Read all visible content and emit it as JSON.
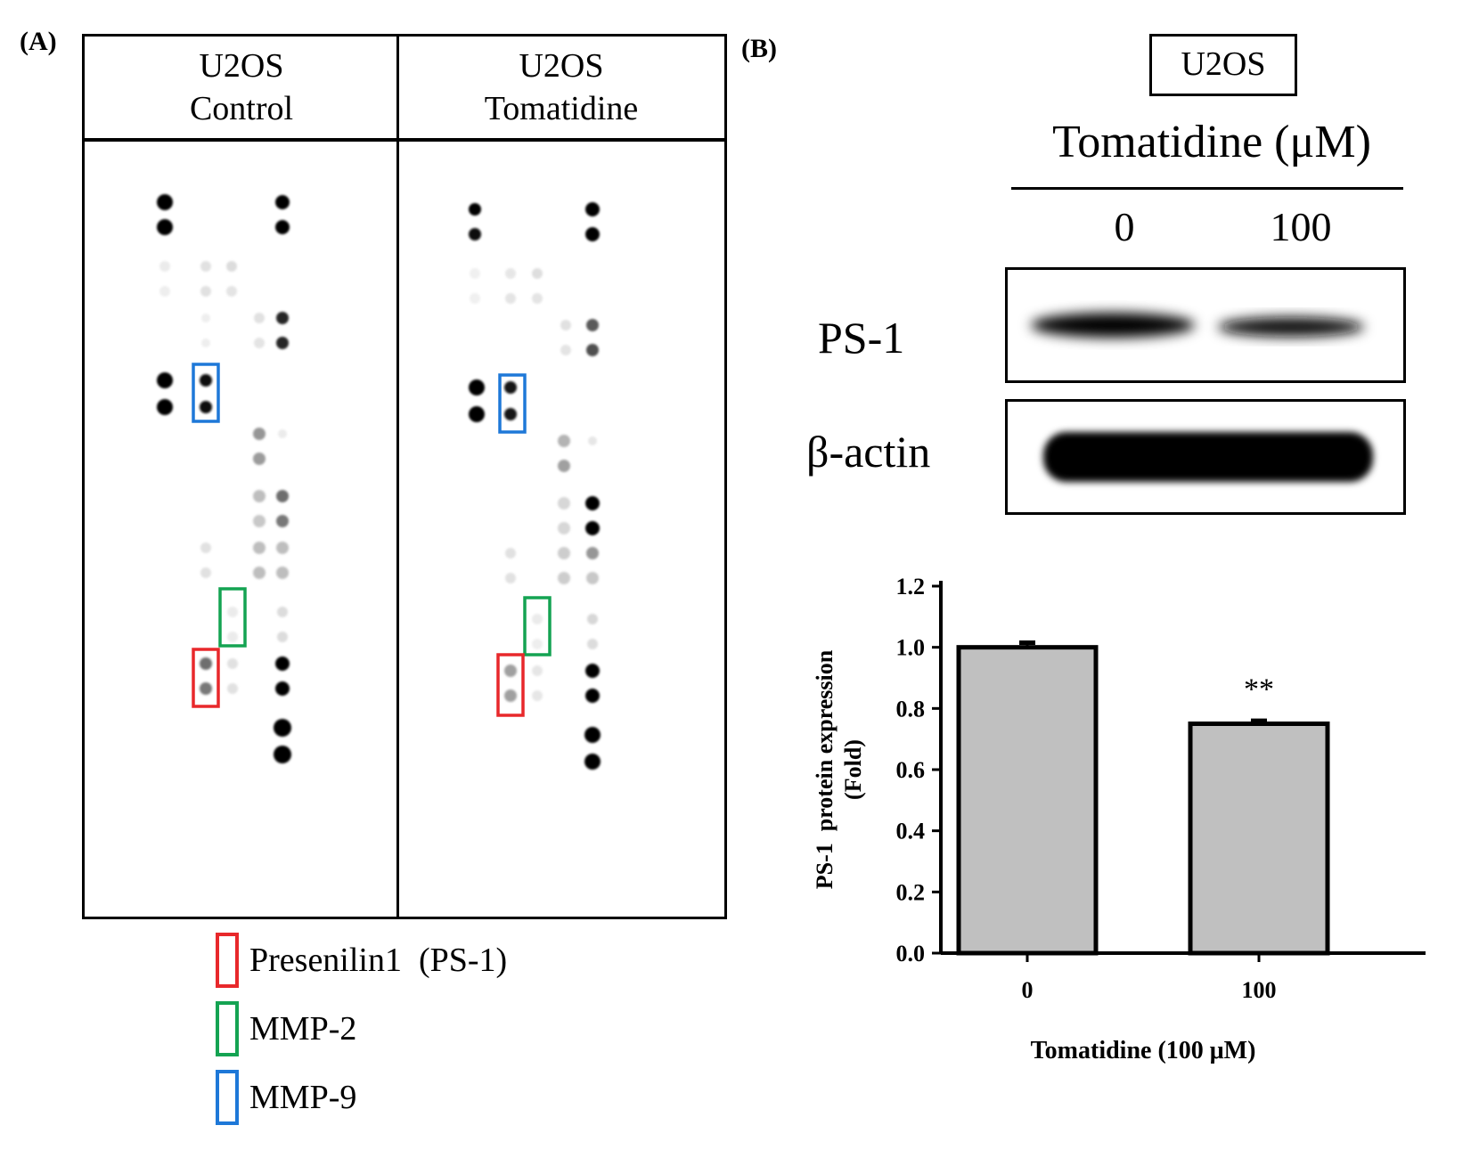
{
  "panel_a": {
    "label": "(A)",
    "headers": [
      {
        "line1": "U2OS",
        "line2": "Control"
      },
      {
        "line1": "U2OS",
        "line2": "Tomatidine"
      }
    ],
    "legend": [
      {
        "text": "Presenilin1  (PS-1)",
        "color": "#e8282b"
      },
      {
        "text": "MMP-2",
        "color": "#14a352"
      },
      {
        "text": "MMP-9",
        "color": "#1e78d8"
      }
    ]
  },
  "panel_b": {
    "label": "(B)",
    "cell_line": "U2OS",
    "treatment_label": "Tomatidine (μM)",
    "doses": [
      "0",
      "100"
    ],
    "blot_rows": [
      "PS-1",
      "β-actin"
    ]
  },
  "chart_data": {
    "type": "bar",
    "categories": [
      "0",
      "100"
    ],
    "values": [
      1.0,
      0.75
    ],
    "errors": [
      0.015,
      0.01
    ],
    "annotations": [
      "",
      "**"
    ],
    "ylabel_line1": "PS-1  protein expression",
    "ylabel_line2": "(Fold)",
    "xlabel": "Tomatidine (100 μM)",
    "ylim": [
      0,
      1.2
    ],
    "yticks": [
      "0.0",
      "0.2",
      "0.4",
      "0.6",
      "0.8",
      "1.0",
      "1.2"
    ],
    "bar_color": "#c0c0c0"
  }
}
